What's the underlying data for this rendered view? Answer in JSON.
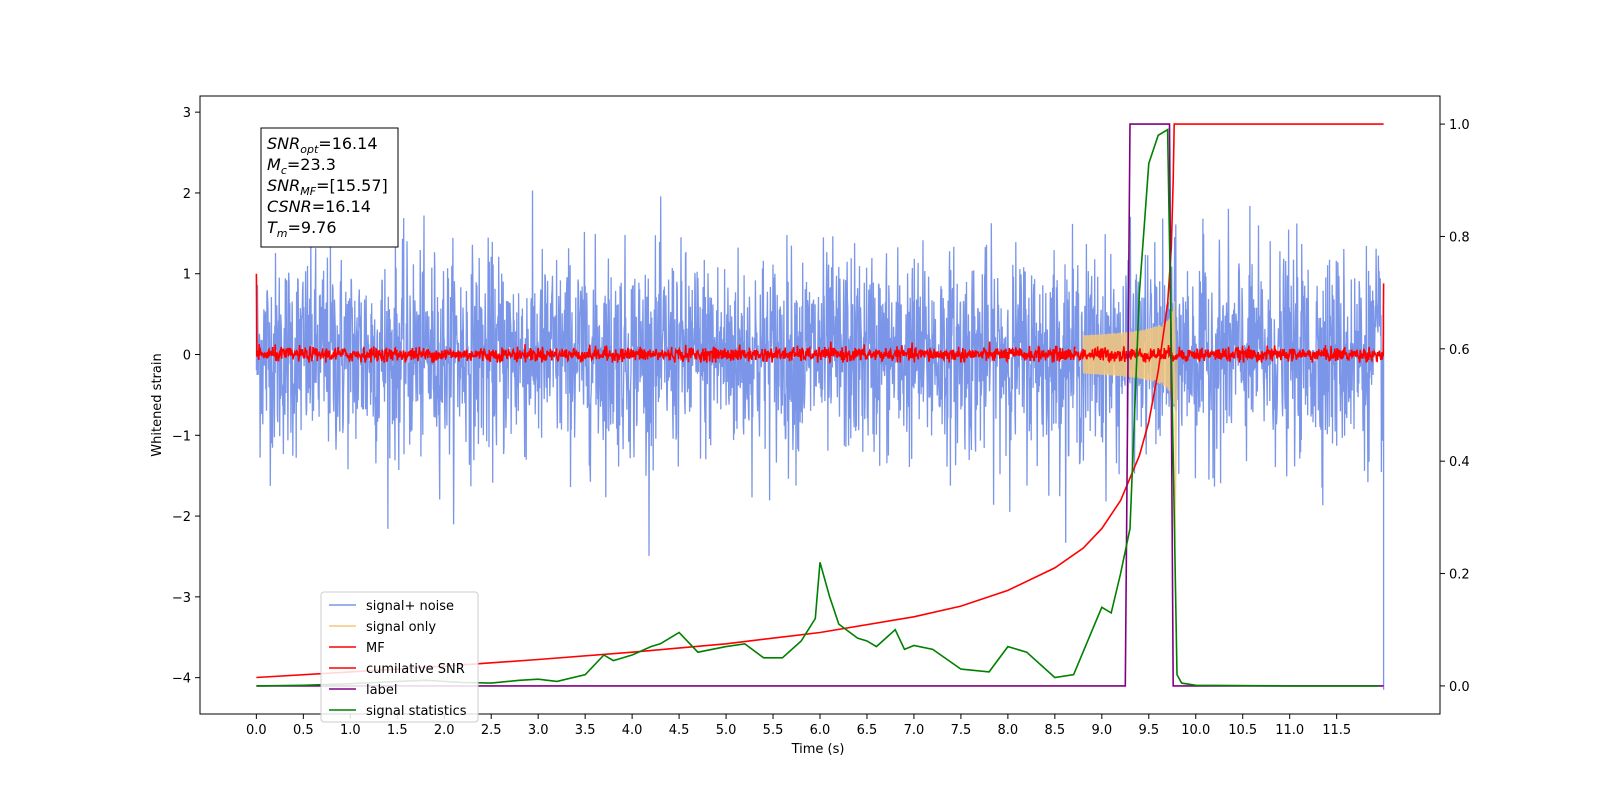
{
  "chart_data": {
    "type": "line",
    "xlabel": "Time (s)",
    "ylabel": "Whitened strain",
    "xlim": [
      -0.6,
      12.6
    ],
    "ylim_left": [
      -4.45,
      3.2
    ],
    "ylim_right": [
      -0.05,
      1.05
    ],
    "x_ticks": [
      0.0,
      0.5,
      1.0,
      1.5,
      2.0,
      2.5,
      3.0,
      3.5,
      4.0,
      4.5,
      5.0,
      5.5,
      6.0,
      6.5,
      7.0,
      7.5,
      8.0,
      8.5,
      9.0,
      9.5,
      10.0,
      10.5,
      11.0,
      11.5
    ],
    "x_tick_labels": [
      "0.0",
      "0.5",
      "1.0",
      "1.5",
      "2.0",
      "2.5",
      "3.0",
      "3.5",
      "4.0",
      "4.5",
      "5.0",
      "5.5",
      "6.0",
      "6.5",
      "7.0",
      "7.5",
      "8.0",
      "8.5",
      "9.0",
      "9.5",
      "10.0",
      "10.5",
      "11.0",
      "11.5"
    ],
    "y_left_ticks": [
      3,
      2,
      1,
      0,
      -1,
      -2,
      -3,
      -4
    ],
    "y_left_tick_labels": [
      "3",
      "2",
      "1",
      "0",
      "−1",
      "−2",
      "−3",
      "−4"
    ],
    "y_right_ticks": [
      1.0,
      0.8,
      0.6,
      0.4,
      0.2,
      0.0
    ],
    "y_right_tick_labels": [
      "1.0",
      "0.8",
      "0.6",
      "0.4",
      "0.2",
      "0.0"
    ],
    "grid": false,
    "legend_position": "bottom-left",
    "annotation": {
      "lines": [
        {
          "base": "SNR",
          "sub": "opt",
          "rest": "=16.14"
        },
        {
          "base": "M",
          "sub": "c",
          "rest": "=23.3"
        },
        {
          "base": "SNR",
          "sub": "MF",
          "rest": "=[15.57]"
        },
        {
          "base": "CSNR",
          "sub": "",
          "rest": "=16.14"
        },
        {
          "base": "T",
          "sub": "m",
          "rest": "=9.76"
        }
      ]
    },
    "series": [
      {
        "name": "signal+ noise",
        "color": "#7b96e8",
        "axis": "left",
        "kind": "noise",
        "x_range": [
          0.0,
          12.0
        ],
        "amplitude_range": [
          -2.5,
          2.85
        ]
      },
      {
        "name": "signal only",
        "color": "#f5c87a",
        "axis": "left",
        "kind": "chirp",
        "x_range": [
          8.8,
          9.78
        ],
        "peak_amplitude": 1.5,
        "min_value": -2.35
      },
      {
        "name": "MF",
        "color": "#ff0000",
        "axis": "left",
        "kind": "noise",
        "x_range": [
          0.0,
          12.0
        ],
        "amplitude_range": [
          -0.1,
          0.2
        ],
        "edge_values": [
          1.0,
          0.88
        ]
      },
      {
        "name": "cumilative SNR",
        "color": "#ff0000",
        "axis": "right",
        "x": [
          0.0,
          1.0,
          2.0,
          3.0,
          4.0,
          5.0,
          6.0,
          7.0,
          7.5,
          8.0,
          8.5,
          8.8,
          9.0,
          9.2,
          9.4,
          9.5,
          9.6,
          9.7,
          9.74,
          9.76,
          9.77,
          12.0
        ],
        "values": [
          0.015,
          0.025,
          0.035,
          0.047,
          0.06,
          0.075,
          0.095,
          0.123,
          0.142,
          0.17,
          0.21,
          0.245,
          0.28,
          0.33,
          0.41,
          0.47,
          0.56,
          0.68,
          0.78,
          0.9,
          1.0,
          1.0
        ]
      },
      {
        "name": "label",
        "color": "#800080",
        "axis": "right",
        "x": [
          0.0,
          9.25,
          9.3,
          9.72,
          9.76,
          12.0
        ],
        "values": [
          0.0,
          0.0,
          1.0,
          1.0,
          0.0,
          0.0
        ]
      },
      {
        "name": "signal statistics",
        "color": "#008000",
        "axis": "right",
        "x": [
          0.0,
          0.5,
          1.0,
          1.5,
          1.8,
          2.2,
          2.5,
          2.8,
          3.0,
          3.2,
          3.5,
          3.7,
          3.8,
          4.0,
          4.2,
          4.3,
          4.5,
          4.7,
          5.0,
          5.2,
          5.4,
          5.6,
          5.8,
          5.95,
          6.0,
          6.1,
          6.2,
          6.4,
          6.5,
          6.6,
          6.8,
          6.9,
          7.0,
          7.2,
          7.5,
          7.8,
          8.0,
          8.2,
          8.5,
          8.7,
          8.9,
          9.0,
          9.1,
          9.2,
          9.3,
          9.4,
          9.5,
          9.6,
          9.7,
          9.75,
          9.8,
          9.85,
          10.0,
          11.0,
          11.95
        ],
        "values": [
          0.0,
          0.001,
          0.004,
          0.008,
          0.01,
          0.006,
          0.005,
          0.01,
          0.012,
          0.008,
          0.02,
          0.055,
          0.045,
          0.055,
          0.07,
          0.075,
          0.095,
          0.06,
          0.07,
          0.075,
          0.05,
          0.05,
          0.08,
          0.12,
          0.22,
          0.16,
          0.11,
          0.085,
          0.08,
          0.07,
          0.1,
          0.065,
          0.072,
          0.065,
          0.03,
          0.025,
          0.07,
          0.06,
          0.015,
          0.02,
          0.1,
          0.14,
          0.13,
          0.2,
          0.28,
          0.7,
          0.93,
          0.98,
          0.99,
          0.5,
          0.02,
          0.005,
          0.001,
          0.0,
          0.0
        ]
      }
    ]
  }
}
